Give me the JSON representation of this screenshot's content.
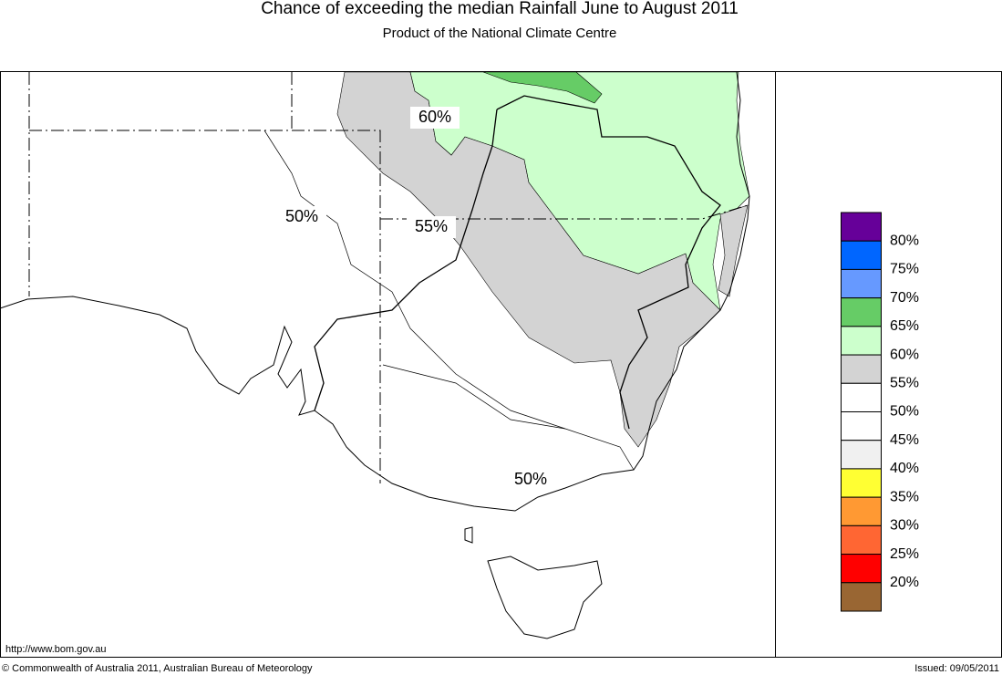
{
  "header": {
    "title": "Chance of exceeding the median Rainfall June to August 2011",
    "subtitle": "Product of the National Climate Centre"
  },
  "map": {
    "contour_labels": [
      "60%",
      "55%",
      "50%",
      "50%"
    ]
  },
  "legend": {
    "colors": [
      "#660099",
      "#0066ff",
      "#6699ff",
      "#66cc66",
      "#ccffcc",
      "#d3d3d3",
      "#ffffff",
      "#ffffff",
      "#f0f0f0",
      "#ffff33",
      "#ff9933",
      "#ff6633",
      "#ff0000",
      "#996633"
    ],
    "labels": [
      "80%",
      "75%",
      "70%",
      "65%",
      "60%",
      "55%",
      "50%",
      "45%",
      "40%",
      "35%",
      "30%",
      "25%",
      "20%"
    ]
  },
  "footer": {
    "url": "http://www.bom.gov.au",
    "copyright": "© Commonwealth of Australia 2011, Australian Bureau of Meteorology",
    "issued": "Issued: 09/05/2011"
  }
}
